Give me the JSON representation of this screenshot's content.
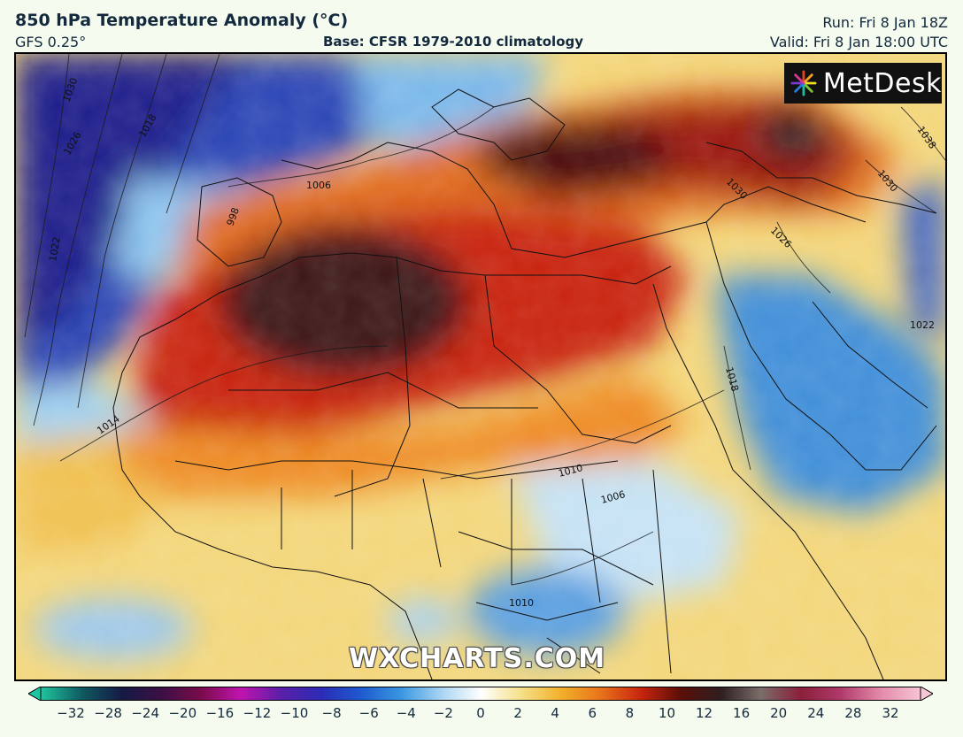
{
  "header": {
    "title": "850 hPa Temperature Anomaly (°C)",
    "model": "GFS 0.25°",
    "base": "Base: CFSR 1979-2010 climatology",
    "run": "Run: Fri 8 Jan 18Z",
    "valid": "Valid: Fri 8 Jan 18:00 UTC"
  },
  "logo": {
    "text": "MetDesk",
    "icon": "metdesk-starburst-icon"
  },
  "watermark": "WXCHARTS.COM",
  "map": {
    "isobar_labels": [
      "1030",
      "1026",
      "1018",
      "1006",
      "998",
      "1022",
      "1014",
      "1010",
      "1006",
      "1010",
      "1018",
      "1026",
      "1030",
      "1038",
      "1022",
      "1030"
    ]
  },
  "scale": {
    "labels": [
      "-32",
      "-28",
      "-24",
      "-20",
      "-16",
      "-12",
      "-10",
      "-8",
      "-6",
      "-4",
      "-2",
      "0",
      "2",
      "4",
      "6",
      "8",
      "10",
      "12",
      "16",
      "20",
      "24",
      "28",
      "32"
    ],
    "colors": [
      "#1fc5a0",
      "#0f5c62",
      "#151a45",
      "#3a1045",
      "#7a0b4a",
      "#c014b0",
      "#5a1fa8",
      "#2b2bb5",
      "#1e5ad0",
      "#3a96e0",
      "#a8d4f2",
      "#ffffff",
      "#f5e08a",
      "#f2b02a",
      "#e8731a",
      "#c8250e",
      "#5a0f08",
      "#2e1f1f",
      "#7a6d6a",
      "#8a1f3a",
      "#b03a6a",
      "#e48aaa",
      "#f6c6d6"
    ]
  }
}
